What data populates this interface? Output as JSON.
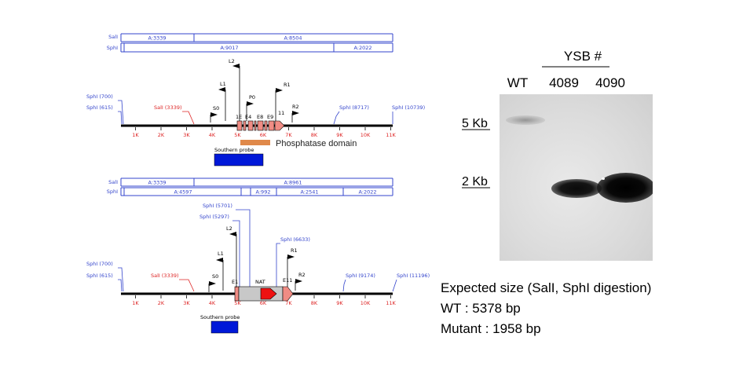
{
  "colors": {
    "site_blue": "#3344cc",
    "site_red": "#dd2222",
    "exon_fill": "#f08c84",
    "domain_orange": "#e0894a",
    "probe_blue": "#0018d8",
    "nat_red": "#ee1111",
    "cassette_gray": "#c8c8c8"
  },
  "wt_map": {
    "enzyme_rows": [
      {
        "enzyme": "SalI",
        "fragments": [
          {
            "label": "A:3339"
          },
          {
            "label": "A:8504"
          }
        ]
      },
      {
        "enzyme": "SphI",
        "fragments": [
          {
            "label": "A:9017"
          },
          {
            "label": "A:2022"
          }
        ]
      }
    ],
    "site_labels": [
      "SphI (700)",
      "SphI (615)",
      "SalI (3339)",
      "SphI (8717)",
      "SphI (10739)"
    ],
    "axis_ticks": [
      "1K",
      "2K",
      "3K",
      "4K",
      "5K",
      "6K",
      "7K",
      "8K",
      "9K",
      "10K",
      "11K"
    ],
    "primers": [
      "L2",
      "L1",
      "S0",
      "P0",
      "R1",
      "R2"
    ],
    "exons": [
      "1E",
      "E4",
      "E8",
      "E9",
      "11"
    ],
    "domain_label": "Phosphatase domain",
    "probe_label": "Southern probe"
  },
  "mut_map": {
    "enzyme_rows": [
      {
        "enzyme": "SalI",
        "fragments": [
          {
            "label": "A:3339"
          },
          {
            "label": "A:8961"
          }
        ]
      },
      {
        "enzyme": "SphI",
        "fragments": [
          {
            "label": "A:4597"
          },
          {
            "label": "A:992"
          },
          {
            "label": "A:2541"
          },
          {
            "label": "A:2022"
          }
        ]
      }
    ],
    "site_labels": [
      "SphI (700)",
      "SphI (615)",
      "SalI (3339)",
      "SphI (5701)",
      "SphI (5297)",
      "SphI (6633)",
      "SphI (9174)",
      "SphI (11196)"
    ],
    "axis_ticks": [
      "1K",
      "2K",
      "3K",
      "4K",
      "5K",
      "6K",
      "7K",
      "8K",
      "9K",
      "10K",
      "11K"
    ],
    "primers": [
      "L2",
      "L1",
      "S0",
      "R1",
      "R2"
    ],
    "exons": [
      "E1",
      "E11"
    ],
    "cassette_label": "NAT",
    "probe_label": "Southern probe"
  },
  "blot": {
    "header": "YSB #",
    "lanes": [
      "WT",
      "4089",
      "4090"
    ],
    "markers": [
      "5 Kb",
      "2 Kb"
    ]
  },
  "notes": {
    "line1": "Expected size (SalI, SphI digestion)",
    "line2": "WT : 5378 bp",
    "line3": "Mutant : 1958 bp"
  }
}
